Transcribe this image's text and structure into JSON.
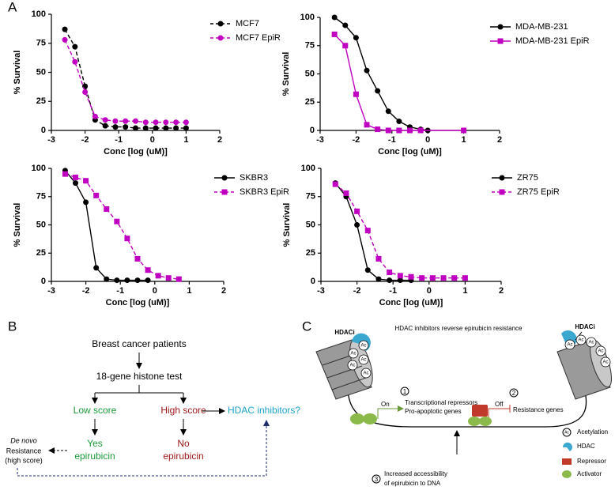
{
  "panel_labels": {
    "a": "A",
    "b": "B",
    "c": "C"
  },
  "chart_data": [
    {
      "type": "line",
      "xlabel": "Conc [log (uM)]",
      "ylabel": "% Survival",
      "xlim": [
        -3,
        2
      ],
      "ylim": [
        0,
        100
      ],
      "xticks": [
        -3,
        -2,
        -1,
        0,
        1,
        2
      ],
      "yticks": [
        0,
        25,
        50,
        75,
        100
      ],
      "legend": "upper-right",
      "series": [
        {
          "name": "MCF7",
          "color": "#000000",
          "marker": "circle",
          "dashed": true,
          "x": [
            -2.6,
            -2.3,
            -2.0,
            -1.7,
            -1.4,
            -1.1,
            -0.8,
            -0.5,
            -0.2,
            0.1,
            0.4,
            0.7,
            1.0
          ],
          "values": [
            87,
            72,
            38,
            9,
            4,
            3,
            3,
            2,
            2,
            2,
            2,
            2,
            2
          ]
        },
        {
          "name": "MCF7 EpiR",
          "color": "#c000c0",
          "marker": "circle",
          "dashed": true,
          "x": [
            -2.6,
            -2.3,
            -2.0,
            -1.7,
            -1.4,
            -1.1,
            -0.8,
            -0.5,
            -0.2,
            0.1,
            0.4,
            0.7,
            1.0
          ],
          "values": [
            78,
            59,
            33,
            12,
            9,
            8,
            8,
            8,
            7,
            7,
            7,
            7,
            7
          ]
        }
      ]
    },
    {
      "type": "line",
      "xlabel": "Conc [log (uM)]",
      "ylabel": "% Survival",
      "xlim": [
        -3,
        2
      ],
      "ylim": [
        0,
        100
      ],
      "xticks": [
        -3,
        -2,
        -1,
        0,
        1,
        2
      ],
      "yticks": [
        0,
        25,
        50,
        75,
        100
      ],
      "legend": "upper-right",
      "series": [
        {
          "name": "MDA-MB-231",
          "color": "#000000",
          "marker": "circle",
          "dashed": false,
          "x": [
            -2.6,
            -2.3,
            -2.0,
            -1.7,
            -1.4,
            -1.1,
            -0.8,
            -0.5,
            -0.2,
            0.0
          ],
          "values": [
            100,
            93,
            82,
            53,
            35,
            17,
            8,
            3,
            1,
            0
          ]
        },
        {
          "name": "MDA-MB-231 EpiR",
          "color": "#c000c0",
          "marker": "square",
          "dashed": false,
          "x": [
            -2.6,
            -2.3,
            -2.0,
            -1.7,
            -1.4,
            -1.1,
            -0.8,
            -0.5,
            -0.2,
            1.0
          ],
          "values": [
            85,
            75,
            32,
            5,
            1,
            0,
            0,
            0,
            0,
            0
          ]
        }
      ]
    },
    {
      "type": "line",
      "xlabel": "Conc [log (uM)]",
      "ylabel": "% Survival",
      "xlim": [
        -3,
        2
      ],
      "ylim": [
        0,
        100
      ],
      "xticks": [
        -3,
        -2,
        -1,
        0,
        1,
        2
      ],
      "yticks": [
        0,
        25,
        50,
        75,
        100
      ],
      "legend": "upper-right",
      "series": [
        {
          "name": "SKBR3",
          "color": "#000000",
          "marker": "circle",
          "dashed": false,
          "x": [
            -2.6,
            -2.3,
            -2.0,
            -1.7,
            -1.4,
            -1.1,
            -0.8,
            -0.5,
            -0.2
          ],
          "values": [
            98,
            87,
            70,
            12,
            2,
            1,
            1,
            1,
            1
          ]
        },
        {
          "name": "SKBR3 EpiR",
          "color": "#c000c0",
          "marker": "square",
          "dashed": true,
          "x": [
            -2.6,
            -2.3,
            -2.0,
            -1.7,
            -1.4,
            -1.1,
            -0.8,
            -0.5,
            -0.2,
            0.1,
            0.4,
            0.7
          ],
          "values": [
            95,
            92,
            89,
            76,
            64,
            53,
            38,
            20,
            10,
            5,
            3,
            2
          ]
        }
      ]
    },
    {
      "type": "line",
      "xlabel": "Conc [log (uM)]",
      "ylabel": "% Survival",
      "xlim": [
        -3,
        2
      ],
      "ylim": [
        0,
        100
      ],
      "xticks": [
        -3,
        -2,
        -1,
        0,
        1,
        2
      ],
      "yticks": [
        0,
        25,
        50,
        75,
        100
      ],
      "legend": "upper-right",
      "series": [
        {
          "name": "ZR75",
          "color": "#000000",
          "marker": "circle",
          "dashed": false,
          "x": [
            -2.6,
            -2.3,
            -2.0,
            -1.7,
            -1.4,
            -1.1,
            -0.8,
            -0.5
          ],
          "values": [
            87,
            75,
            50,
            10,
            2,
            1,
            1,
            1
          ]
        },
        {
          "name": "ZR75 EpiR",
          "color": "#c000c0",
          "marker": "square",
          "dashed": true,
          "x": [
            -2.6,
            -2.3,
            -2.0,
            -1.7,
            -1.4,
            -1.1,
            -0.8,
            -0.5,
            -0.2,
            0.1,
            0.4,
            0.7,
            1.0
          ],
          "values": [
            86,
            78,
            62,
            45,
            20,
            8,
            5,
            4,
            3,
            3,
            3,
            3,
            3
          ]
        }
      ]
    }
  ],
  "flowchart": {
    "patients": "Breast cancer patients",
    "test": "18-gene histone test",
    "low": "Low score",
    "high": "High score",
    "hdac": "HDAC inhibitors?",
    "yes": [
      "Yes",
      "epirubicin"
    ],
    "no": [
      "No",
      "epirubicin"
    ],
    "resistance": [
      "De novo",
      "Resistance",
      "(high score)"
    ]
  },
  "mechanism": {
    "title": "HDAC inhibitors reverse epirubicin resistance",
    "hdaci": "HDACi",
    "ac": "Ac",
    "step1": "1",
    "step2": "2",
    "step3": "3",
    "on": "On",
    "off": "Off",
    "targets_on": [
      "Transcriptional repressors",
      "Pro-apoptotic genes"
    ],
    "targets_off": "Resistance genes",
    "accessibility": [
      "Increased accessibility",
      "of epirubicin to DNA"
    ],
    "legend": [
      "Acetylation",
      "HDAC",
      "Repressor",
      "Activator"
    ]
  }
}
